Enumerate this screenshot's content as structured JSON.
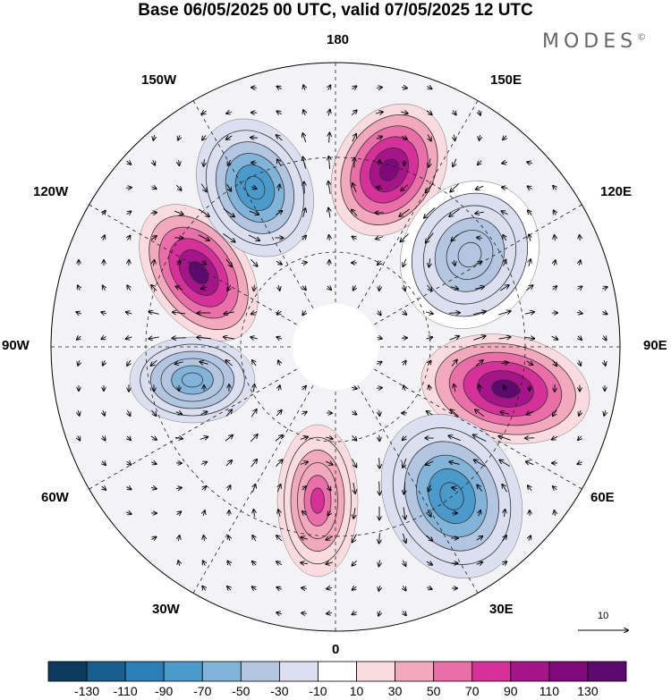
{
  "title": "Base 06/05/2025 00 UTC, valid 07/05/2025 12 UTC",
  "brand": {
    "text": "MODES",
    "mark": "©"
  },
  "map": {
    "projection": "north-polar-stereographic",
    "longitude_labels": {
      "top": "180",
      "bottom": "0",
      "left": "90W",
      "right": "90E",
      "upper_left": "150W",
      "upper_left2": "120W",
      "upper_right": "150E",
      "upper_right2": "120E",
      "lower_left": "60W",
      "lower_left2": "30W",
      "lower_right": "60E",
      "lower_right2": "30E"
    },
    "vector_reference": "10",
    "anomaly_centers": [
      {
        "sign": "positive",
        "lon_region": "near 180E-150E",
        "peak": 110
      },
      {
        "sign": "positive",
        "lon_region": "near 120W",
        "peak": 130
      },
      {
        "sign": "positive",
        "lon_region": "near 90E",
        "peak": 130
      },
      {
        "sign": "positive",
        "lon_region": "near 30W-0",
        "peak": 70
      },
      {
        "sign": "negative",
        "lon_region": "near 150W",
        "peak": -90
      },
      {
        "sign": "negative",
        "lon_region": "near 90W",
        "peak": -70
      },
      {
        "sign": "negative",
        "lon_region": "near 30E-60E",
        "peak": -90
      },
      {
        "sign": "negative",
        "lon_region": "near 120E",
        "peak": -50
      }
    ]
  },
  "colorbar": {
    "colors": [
      "#0b3a5e",
      "#195f8d",
      "#2b7fb8",
      "#4a9bcc",
      "#82b3d8",
      "#b3c6e1",
      "#dcdff0",
      "#ffffff",
      "#fadbe0",
      "#f3a9bd",
      "#ea6ea7",
      "#d6319a",
      "#a51489",
      "#81087a",
      "#5c0a6e"
    ],
    "labels": [
      "-130",
      "-110",
      "-90",
      "-70",
      "-50",
      "-30",
      "-10",
      "10",
      "30",
      "50",
      "70",
      "90",
      "110",
      "130"
    ]
  }
}
